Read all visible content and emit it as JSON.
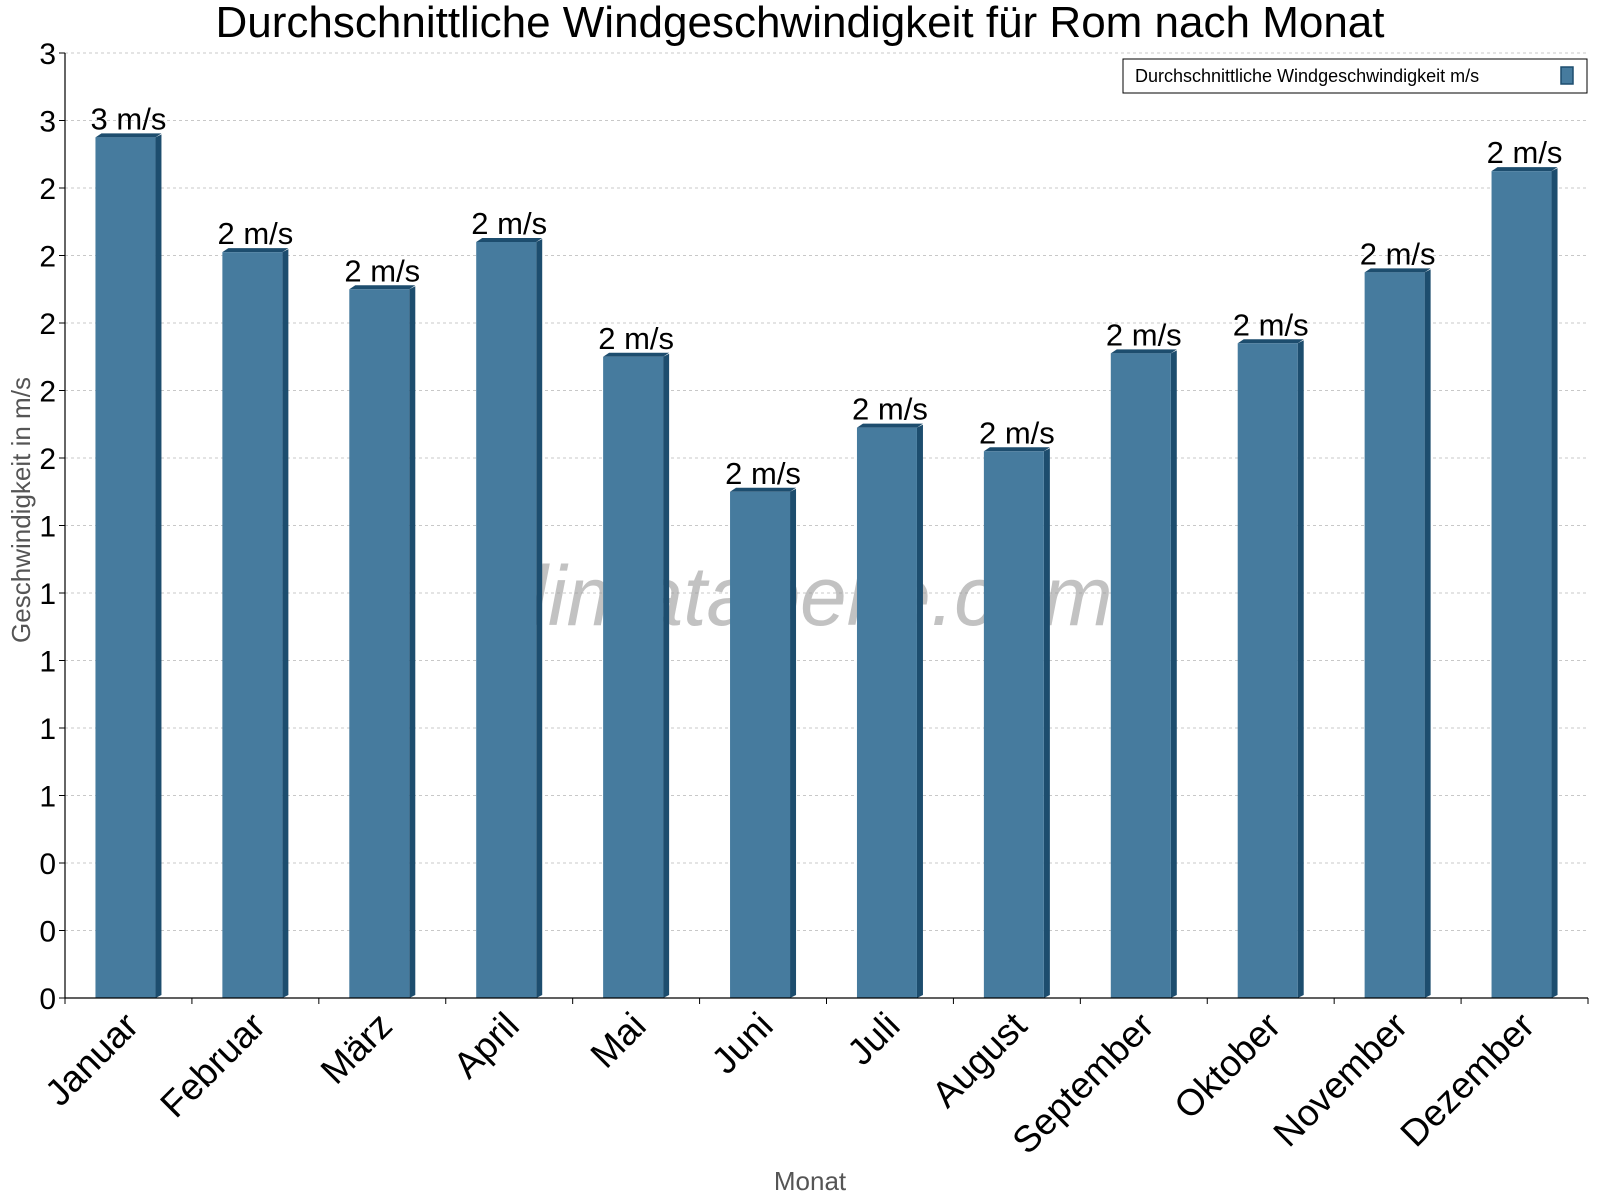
{
  "chart_data": {
    "type": "bar",
    "title": "Durchschnittliche Windgeschwindigkeit für Rom nach Monat",
    "xlabel": "Monat",
    "ylabel": "Geschwindigkeit in m/s",
    "categories": [
      "Januar",
      "Februar",
      "März",
      "April",
      "Mai",
      "Juni",
      "Juli",
      "August",
      "September",
      "Oktober",
      "November",
      "Dezember"
    ],
    "series": [
      {
        "name": "Durchschnittliche Windgeschwindigkeit m/s",
        "values": [
          2.55,
          2.21,
          2.1,
          2.24,
          1.9,
          1.5,
          1.69,
          1.62,
          1.91,
          1.94,
          2.15,
          2.45
        ],
        "labels": [
          "3 m/s",
          "2 m/s",
          "2 m/s",
          "2 m/s",
          "2 m/s",
          "2 m/s",
          "2 m/s",
          "2 m/s",
          "2 m/s",
          "2 m/s",
          "2 m/s",
          "2 m/s"
        ]
      }
    ],
    "ylim": [
      0,
      2.8
    ],
    "yticks": [
      0,
      0.2,
      0.4,
      0.6,
      0.8,
      1.0,
      1.2,
      1.4,
      1.6,
      1.8,
      2.0,
      2.2,
      2.4,
      2.6,
      2.8
    ],
    "ytick_labels": [
      "0",
      "0",
      "0",
      "1",
      "1",
      "1",
      "1",
      "1",
      "2",
      "2",
      "2",
      "2",
      "2",
      "3",
      "3"
    ],
    "grid": true,
    "legend": "top-right",
    "watermark": "klimatabelle.com",
    "colors": {
      "bar": "#467b9e",
      "bar_side": "#1d4d6e",
      "grid": "#c8c8c8",
      "axis": "#000000"
    }
  }
}
